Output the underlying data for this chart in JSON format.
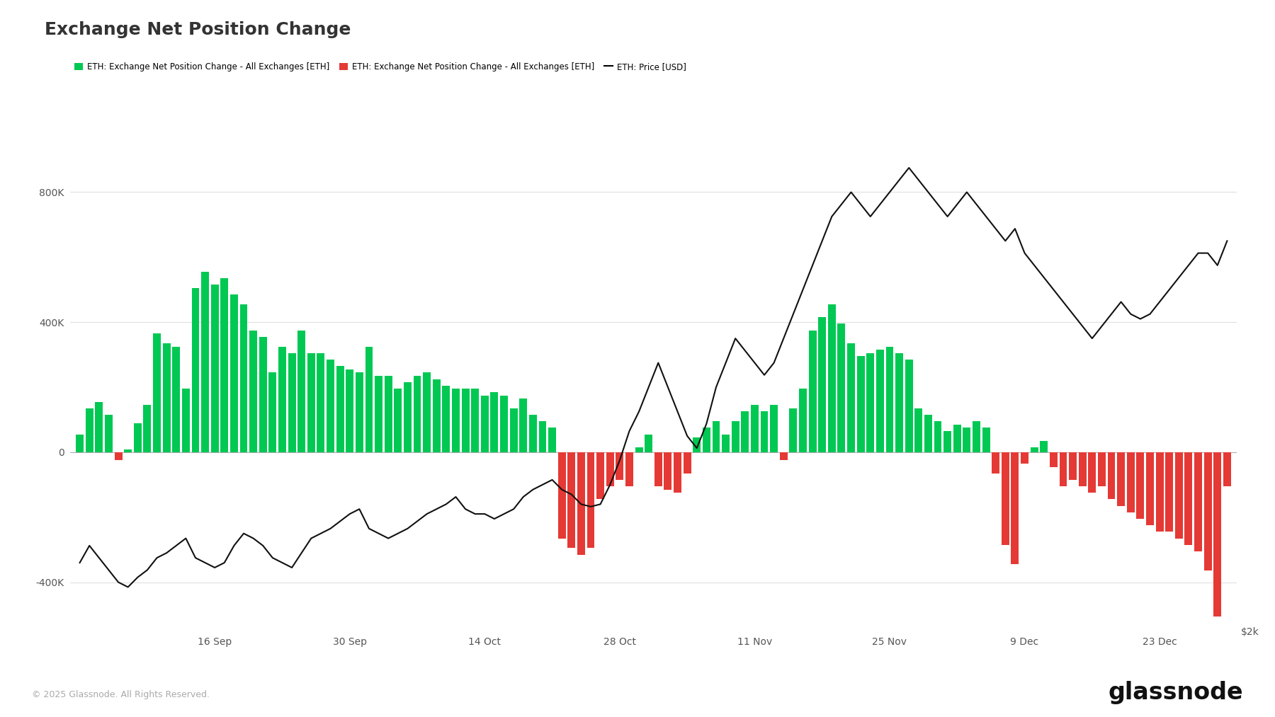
{
  "title": "Exchange Net Position Change",
  "legend_labels": [
    "ETH: Exchange Net Position Change - All Exchanges [ETH]",
    "ETH: Exchange Net Position Change - All Exchanges [ETH]",
    "ETH: Price [USD]"
  ],
  "legend_colors": [
    "#00c853",
    "#e53935",
    "#000000"
  ],
  "yticks_left": [
    -400000,
    0,
    400000,
    800000
  ],
  "ytick_labels_left": [
    "-400K",
    "0",
    "400K",
    "800K"
  ],
  "ytick_right_label": "$2k",
  "xtick_labels": [
    "16 Sep",
    "30 Sep",
    "14 Oct",
    "28 Oct",
    "11 Nov",
    "25 Nov",
    "9 Dec",
    "23 Dec"
  ],
  "footer": "© 2025 Glassnode. All Rights Reserved.",
  "background_color": "#ffffff",
  "bar_color_pos": "#00c853",
  "bar_color_neg": "#e53935",
  "line_color": "#111111",
  "bar_values": [
    55000,
    135000,
    155000,
    115000,
    -25000,
    8000,
    88000,
    145000,
    365000,
    335000,
    325000,
    195000,
    505000,
    555000,
    515000,
    535000,
    485000,
    455000,
    375000,
    355000,
    245000,
    325000,
    305000,
    375000,
    305000,
    305000,
    285000,
    265000,
    255000,
    245000,
    325000,
    235000,
    235000,
    195000,
    215000,
    235000,
    245000,
    225000,
    205000,
    195000,
    195000,
    195000,
    175000,
    185000,
    175000,
    135000,
    165000,
    115000,
    95000,
    75000,
    -265000,
    -295000,
    -315000,
    -295000,
    -145000,
    -105000,
    -85000,
    -105000,
    15000,
    55000,
    -105000,
    -115000,
    -125000,
    -65000,
    45000,
    75000,
    95000,
    55000,
    95000,
    125000,
    145000,
    125000,
    145000,
    -25000,
    135000,
    195000,
    375000,
    415000,
    455000,
    395000,
    335000,
    295000,
    305000,
    315000,
    325000,
    305000,
    285000,
    135000,
    115000,
    95000,
    65000,
    85000,
    75000,
    95000,
    75000,
    -65000,
    -285000,
    -345000,
    -35000,
    15000,
    35000,
    -45000,
    -105000,
    -85000,
    -105000,
    -125000,
    -105000,
    -145000,
    -165000,
    -185000,
    -205000,
    -225000,
    -245000,
    -245000,
    -265000,
    -285000,
    -305000,
    -365000,
    -505000,
    -105000
  ],
  "price_values": [
    2280,
    2350,
    2300,
    2250,
    2200,
    2180,
    2220,
    2250,
    2300,
    2320,
    2350,
    2380,
    2300,
    2280,
    2260,
    2280,
    2350,
    2400,
    2380,
    2350,
    2300,
    2280,
    2260,
    2320,
    2380,
    2400,
    2420,
    2450,
    2480,
    2500,
    2420,
    2400,
    2380,
    2400,
    2420,
    2450,
    2480,
    2500,
    2520,
    2550,
    2500,
    2480,
    2480,
    2460,
    2480,
    2500,
    2550,
    2580,
    2600,
    2620,
    2580,
    2560,
    2520,
    2510,
    2520,
    2600,
    2700,
    2820,
    2900,
    3000,
    3100,
    3000,
    2900,
    2800,
    2750,
    2850,
    3000,
    3100,
    3200,
    3150,
    3100,
    3050,
    3100,
    3200,
    3300,
    3400,
    3500,
    3600,
    3700,
    3750,
    3800,
    3750,
    3700,
    3750,
    3800,
    3850,
    3900,
    3850,
    3800,
    3750,
    3700,
    3750,
    3800,
    3750,
    3700,
    3650,
    3600,
    3650,
    3550,
    3500,
    3450,
    3400,
    3350,
    3300,
    3250,
    3200,
    3250,
    3300,
    3350,
    3300,
    3280,
    3300,
    3350,
    3400,
    3450,
    3500,
    3550,
    3550,
    3500,
    3600
  ],
  "price_display_min": 2000,
  "price_display_max": 4000,
  "bar_ylim": [
    -550000,
    950000
  ],
  "bar_yticks": [
    -400000,
    0,
    400000,
    800000
  ],
  "bar_ytick_labels": [
    "-400K",
    "0",
    "400K",
    "800K"
  ],
  "grid_color": "#e0e0e0",
  "title_fontsize": 18,
  "label_fontsize": 10,
  "footer_fontsize": 9,
  "logo_fontsize": 24
}
